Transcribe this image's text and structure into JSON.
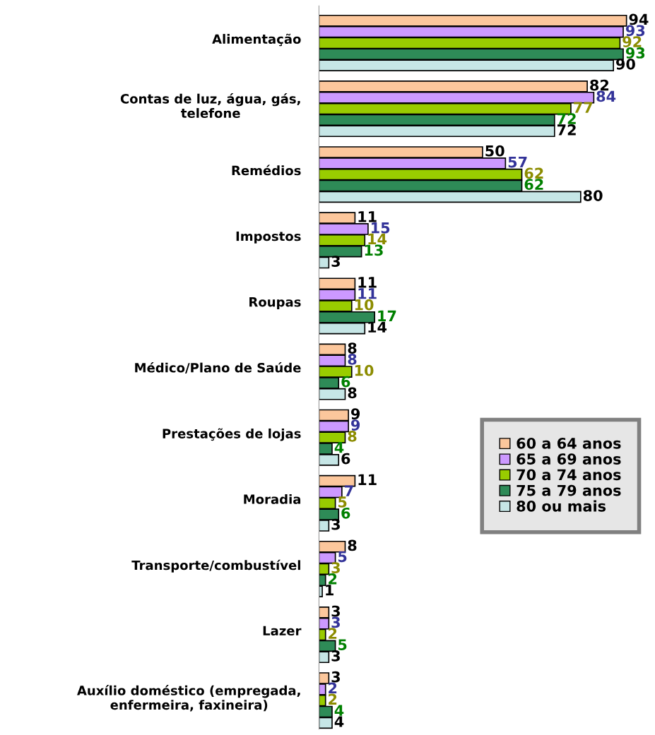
{
  "chart_data": {
    "type": "bar",
    "orientation": "horizontal",
    "data_labels": true,
    "legend": "right",
    "grid": false,
    "tick_labels": "y",
    "categories": [
      "Alimentação",
      "Contas de luz, água, gás,\ntelefone",
      "Remédios",
      "Impostos",
      "Roupas",
      "Médico/Plano de Saúde",
      "Prestações de lojas",
      "Moradia",
      "Transporte/combustível",
      "Lazer",
      "Auxílio doméstico (empregada,\nenfermeira, faxineira)"
    ],
    "series": [
      {
        "name": "60 a 64 anos",
        "color": "#fcc79c",
        "values": [
          94,
          82,
          50,
          11,
          11,
          8,
          9,
          11,
          8,
          3,
          3
        ]
      },
      {
        "name": "65 a 69 anos",
        "color": "#cc99ff",
        "values": [
          93,
          84,
          57,
          15,
          11,
          8,
          9,
          7,
          5,
          3,
          2
        ]
      },
      {
        "name": "70 a 74 anos",
        "color": "#99cc00",
        "values": [
          92,
          77,
          62,
          14,
          10,
          10,
          8,
          5,
          3,
          2,
          2
        ]
      },
      {
        "name": "75 a 79 anos",
        "color": "#2e8b57",
        "values": [
          93,
          72,
          62,
          13,
          17,
          6,
          4,
          6,
          2,
          5,
          4
        ]
      },
      {
        "name": "80 ou mais",
        "color": "#c6e6e6",
        "values": [
          90,
          72,
          80,
          3,
          14,
          8,
          6,
          3,
          1,
          3,
          4
        ]
      }
    ]
  }
}
